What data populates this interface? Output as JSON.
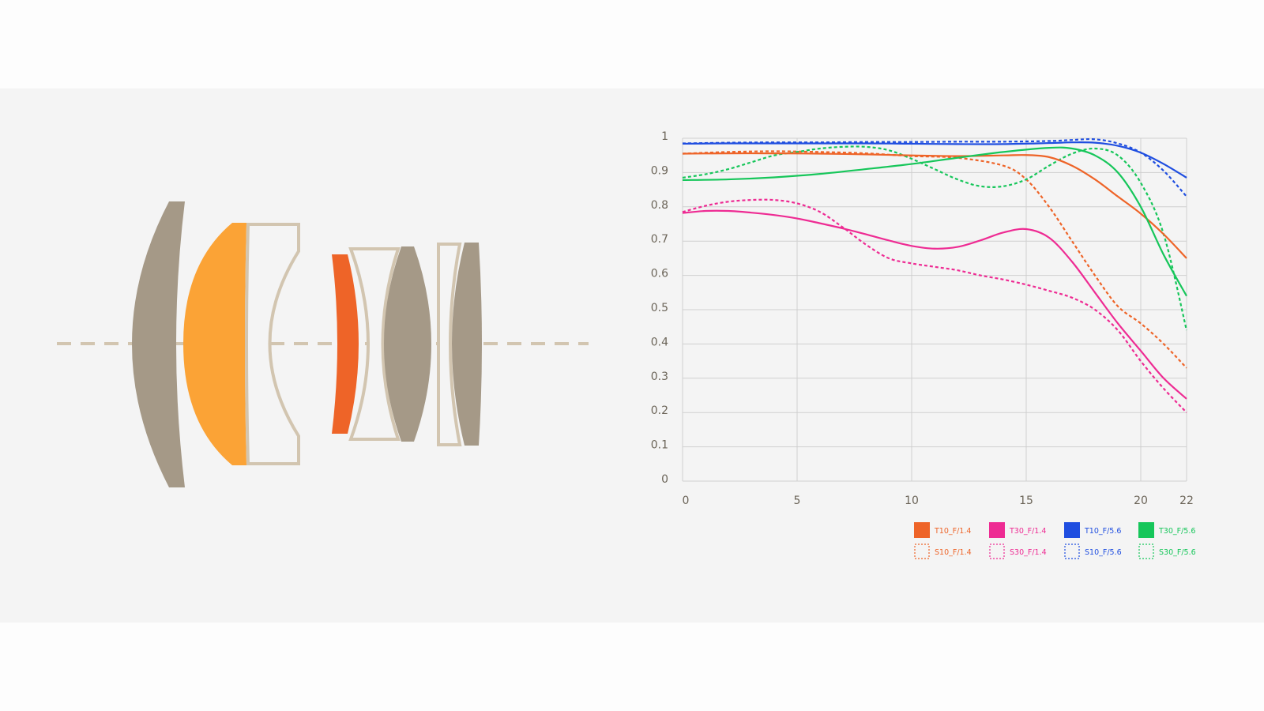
{
  "colors": {
    "orange": "#ee6428",
    "magenta": "#ee2b93",
    "blue": "#1f4ee0",
    "green": "#16c65a",
    "lens_gray": "#a59987",
    "lens_light": "#d2c5b0",
    "lens_amber": "#fba336",
    "lens_red": "#ee6428",
    "grid": "#cfcfcf",
    "tick_text": "#6b6458"
  },
  "lens_diagram": {
    "elements": [
      {
        "name": "lens-element-1",
        "fill": "gray"
      },
      {
        "name": "lens-element-2",
        "fill": "amber"
      },
      {
        "name": "lens-element-3",
        "fill": "outline"
      },
      {
        "name": "lens-element-4",
        "fill": "red"
      },
      {
        "name": "lens-element-5",
        "fill": "outline"
      },
      {
        "name": "lens-element-6",
        "fill": "gray"
      },
      {
        "name": "lens-element-7",
        "fill": "outline"
      },
      {
        "name": "lens-element-8",
        "fill": "gray"
      }
    ],
    "optical_axis": "dashed"
  },
  "chart_data": {
    "type": "line",
    "title": "",
    "xlabel": "",
    "ylabel": "",
    "xlim": [
      0,
      22
    ],
    "ylim": [
      0,
      1
    ],
    "x_ticks": [
      "0",
      "5",
      "10",
      "15",
      "20",
      "22"
    ],
    "y_ticks": [
      "0",
      "0.1",
      "0.2",
      "0.3",
      "0.4",
      "0.5",
      "0.6",
      "0.7",
      "0.8",
      "0.9",
      "1"
    ],
    "grid": true,
    "legend_position": "bottom-right",
    "series": [
      {
        "name": "T10_F/1.4",
        "color": "orange",
        "style": "solid",
        "x": [
          0,
          2,
          4,
          6,
          8,
          10,
          12,
          14,
          15,
          16,
          17,
          18,
          19,
          20,
          21,
          22
        ],
        "y": [
          0.955,
          0.956,
          0.956,
          0.955,
          0.953,
          0.95,
          0.948,
          0.95,
          0.951,
          0.945,
          0.92,
          0.88,
          0.83,
          0.78,
          0.72,
          0.65
        ]
      },
      {
        "name": "T30_F/1.4",
        "color": "magenta",
        "style": "solid",
        "x": [
          0,
          1,
          2,
          3,
          4,
          5,
          6,
          7,
          8,
          9,
          10,
          11,
          12,
          13,
          14,
          15,
          16,
          17,
          18,
          19,
          20,
          21,
          22
        ],
        "y": [
          0.782,
          0.788,
          0.788,
          0.783,
          0.776,
          0.766,
          0.752,
          0.737,
          0.72,
          0.702,
          0.686,
          0.678,
          0.683,
          0.702,
          0.725,
          0.735,
          0.71,
          0.64,
          0.55,
          0.46,
          0.38,
          0.3,
          0.24
        ]
      },
      {
        "name": "T10_F/5.6",
        "color": "blue",
        "style": "solid",
        "x": [
          0,
          2,
          4,
          6,
          8,
          10,
          12,
          14,
          16,
          17,
          18,
          19,
          20,
          21,
          22
        ],
        "y": [
          0.984,
          0.985,
          0.985,
          0.985,
          0.985,
          0.984,
          0.983,
          0.983,
          0.986,
          0.988,
          0.987,
          0.978,
          0.958,
          0.925,
          0.885
        ]
      },
      {
        "name": "T30_F/5.6",
        "color": "green",
        "style": "solid",
        "x": [
          0,
          2,
          4,
          6,
          8,
          10,
          12,
          14,
          16,
          17,
          18,
          19,
          20,
          21,
          22
        ],
        "y": [
          0.878,
          0.88,
          0.886,
          0.896,
          0.91,
          0.925,
          0.943,
          0.96,
          0.972,
          0.97,
          0.95,
          0.9,
          0.8,
          0.66,
          0.54
        ]
      },
      {
        "name": "S10_F/1.4",
        "color": "orange",
        "style": "dashed",
        "x": [
          0,
          2,
          4,
          6,
          8,
          10,
          12,
          14,
          15,
          16,
          17,
          18,
          19,
          20,
          21,
          22
        ],
        "y": [
          0.955,
          0.96,
          0.962,
          0.96,
          0.956,
          0.948,
          0.943,
          0.92,
          0.88,
          0.8,
          0.7,
          0.6,
          0.51,
          0.46,
          0.4,
          0.33
        ]
      },
      {
        "name": "S30_F/1.4",
        "color": "magenta",
        "style": "dashed",
        "x": [
          0,
          1,
          2,
          3,
          4,
          5,
          6,
          7,
          8,
          9,
          10,
          11,
          12,
          13,
          14,
          15,
          16,
          17,
          18,
          19,
          20,
          21,
          22
        ],
        "y": [
          0.785,
          0.803,
          0.815,
          0.82,
          0.82,
          0.81,
          0.785,
          0.74,
          0.69,
          0.65,
          0.635,
          0.625,
          0.615,
          0.6,
          0.588,
          0.573,
          0.555,
          0.535,
          0.5,
          0.44,
          0.35,
          0.27,
          0.2
        ]
      },
      {
        "name": "S10_F/5.6",
        "color": "blue",
        "style": "dashed",
        "x": [
          0,
          2,
          4,
          6,
          8,
          10,
          12,
          14,
          16,
          17,
          18,
          19,
          20,
          21,
          22
        ],
        "y": [
          0.985,
          0.987,
          0.988,
          0.988,
          0.989,
          0.989,
          0.99,
          0.99,
          0.992,
          0.995,
          0.997,
          0.985,
          0.958,
          0.905,
          0.83
        ]
      },
      {
        "name": "S30_F/5.6",
        "color": "green",
        "style": "dashed",
        "x": [
          0,
          1,
          2,
          3,
          4,
          5,
          6,
          7,
          8,
          9,
          10,
          11,
          12,
          13,
          14,
          15,
          16,
          17,
          18,
          19,
          20,
          21,
          22
        ],
        "y": [
          0.885,
          0.895,
          0.91,
          0.93,
          0.95,
          0.96,
          0.97,
          0.975,
          0.975,
          0.965,
          0.94,
          0.91,
          0.88,
          0.86,
          0.86,
          0.88,
          0.92,
          0.955,
          0.97,
          0.95,
          0.87,
          0.72,
          0.44
        ]
      }
    ],
    "legend": [
      {
        "label": "T10_F/1.4",
        "color": "orange",
        "style": "solid"
      },
      {
        "label": "T30_F/1.4",
        "color": "magenta",
        "style": "solid"
      },
      {
        "label": "T10_F/5.6",
        "color": "blue",
        "style": "solid"
      },
      {
        "label": "T30_F/5.6",
        "color": "green",
        "style": "solid"
      },
      {
        "label": "S10_F/1.4",
        "color": "orange",
        "style": "dashed"
      },
      {
        "label": "S30_F/1.4",
        "color": "magenta",
        "style": "dashed"
      },
      {
        "label": "S10_F/5.6",
        "color": "blue",
        "style": "dashed"
      },
      {
        "label": "S30_F/5.6",
        "color": "green",
        "style": "dashed"
      }
    ]
  }
}
